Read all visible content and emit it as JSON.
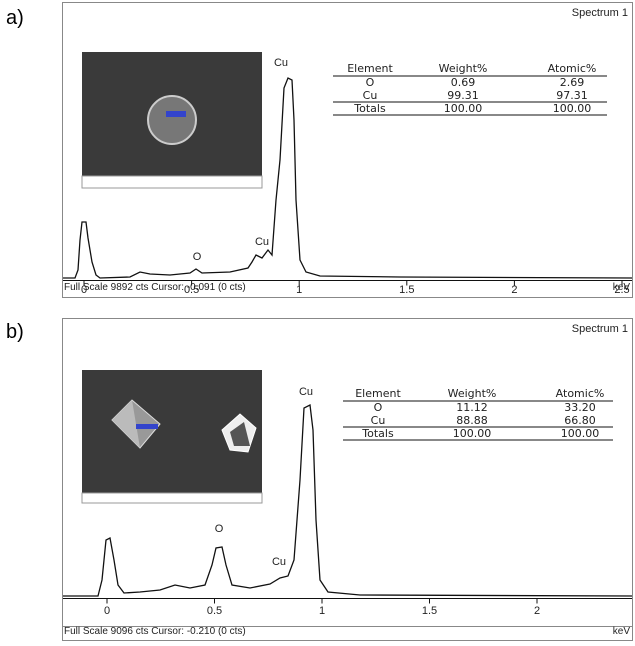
{
  "panels": [
    {
      "label": "a)",
      "spectrum_title": "Spectrum 1",
      "peak_labels": [
        "Cu",
        "Cu",
        "O"
      ],
      "table": {
        "header": [
          "Element",
          "Weight%",
          "Atomic%"
        ],
        "rows": [
          [
            "O",
            "0.69",
            "2.69"
          ],
          [
            "Cu",
            "99.31",
            "97.31"
          ],
          [
            "Totals",
            "100.00",
            "100.00"
          ]
        ]
      },
      "x_ticks": [
        "0",
        "0.5",
        "1",
        "1.5",
        "2",
        "2.5"
      ],
      "footer": "Full Scale 9892 cts Cursor: -0.091  (0 cts)",
      "unit": "keV"
    },
    {
      "label": "b)",
      "spectrum_title": "Spectrum 1",
      "peak_labels": [
        "Cu",
        "O",
        "Cu"
      ],
      "table": {
        "header": [
          "Element",
          "Weight%",
          "Atomic%"
        ],
        "rows": [
          [
            "O",
            "11.12",
            "33.20"
          ],
          [
            "Cu",
            "88.88",
            "66.80"
          ],
          [
            "Totals",
            "100.00",
            "100.00"
          ]
        ]
      },
      "x_ticks": [
        "0",
        "0.5",
        "1",
        "1.5",
        "2"
      ],
      "footer": "Full Scale 9096 cts Cursor: -0.210  (0 cts)",
      "unit": "keV"
    }
  ]
}
